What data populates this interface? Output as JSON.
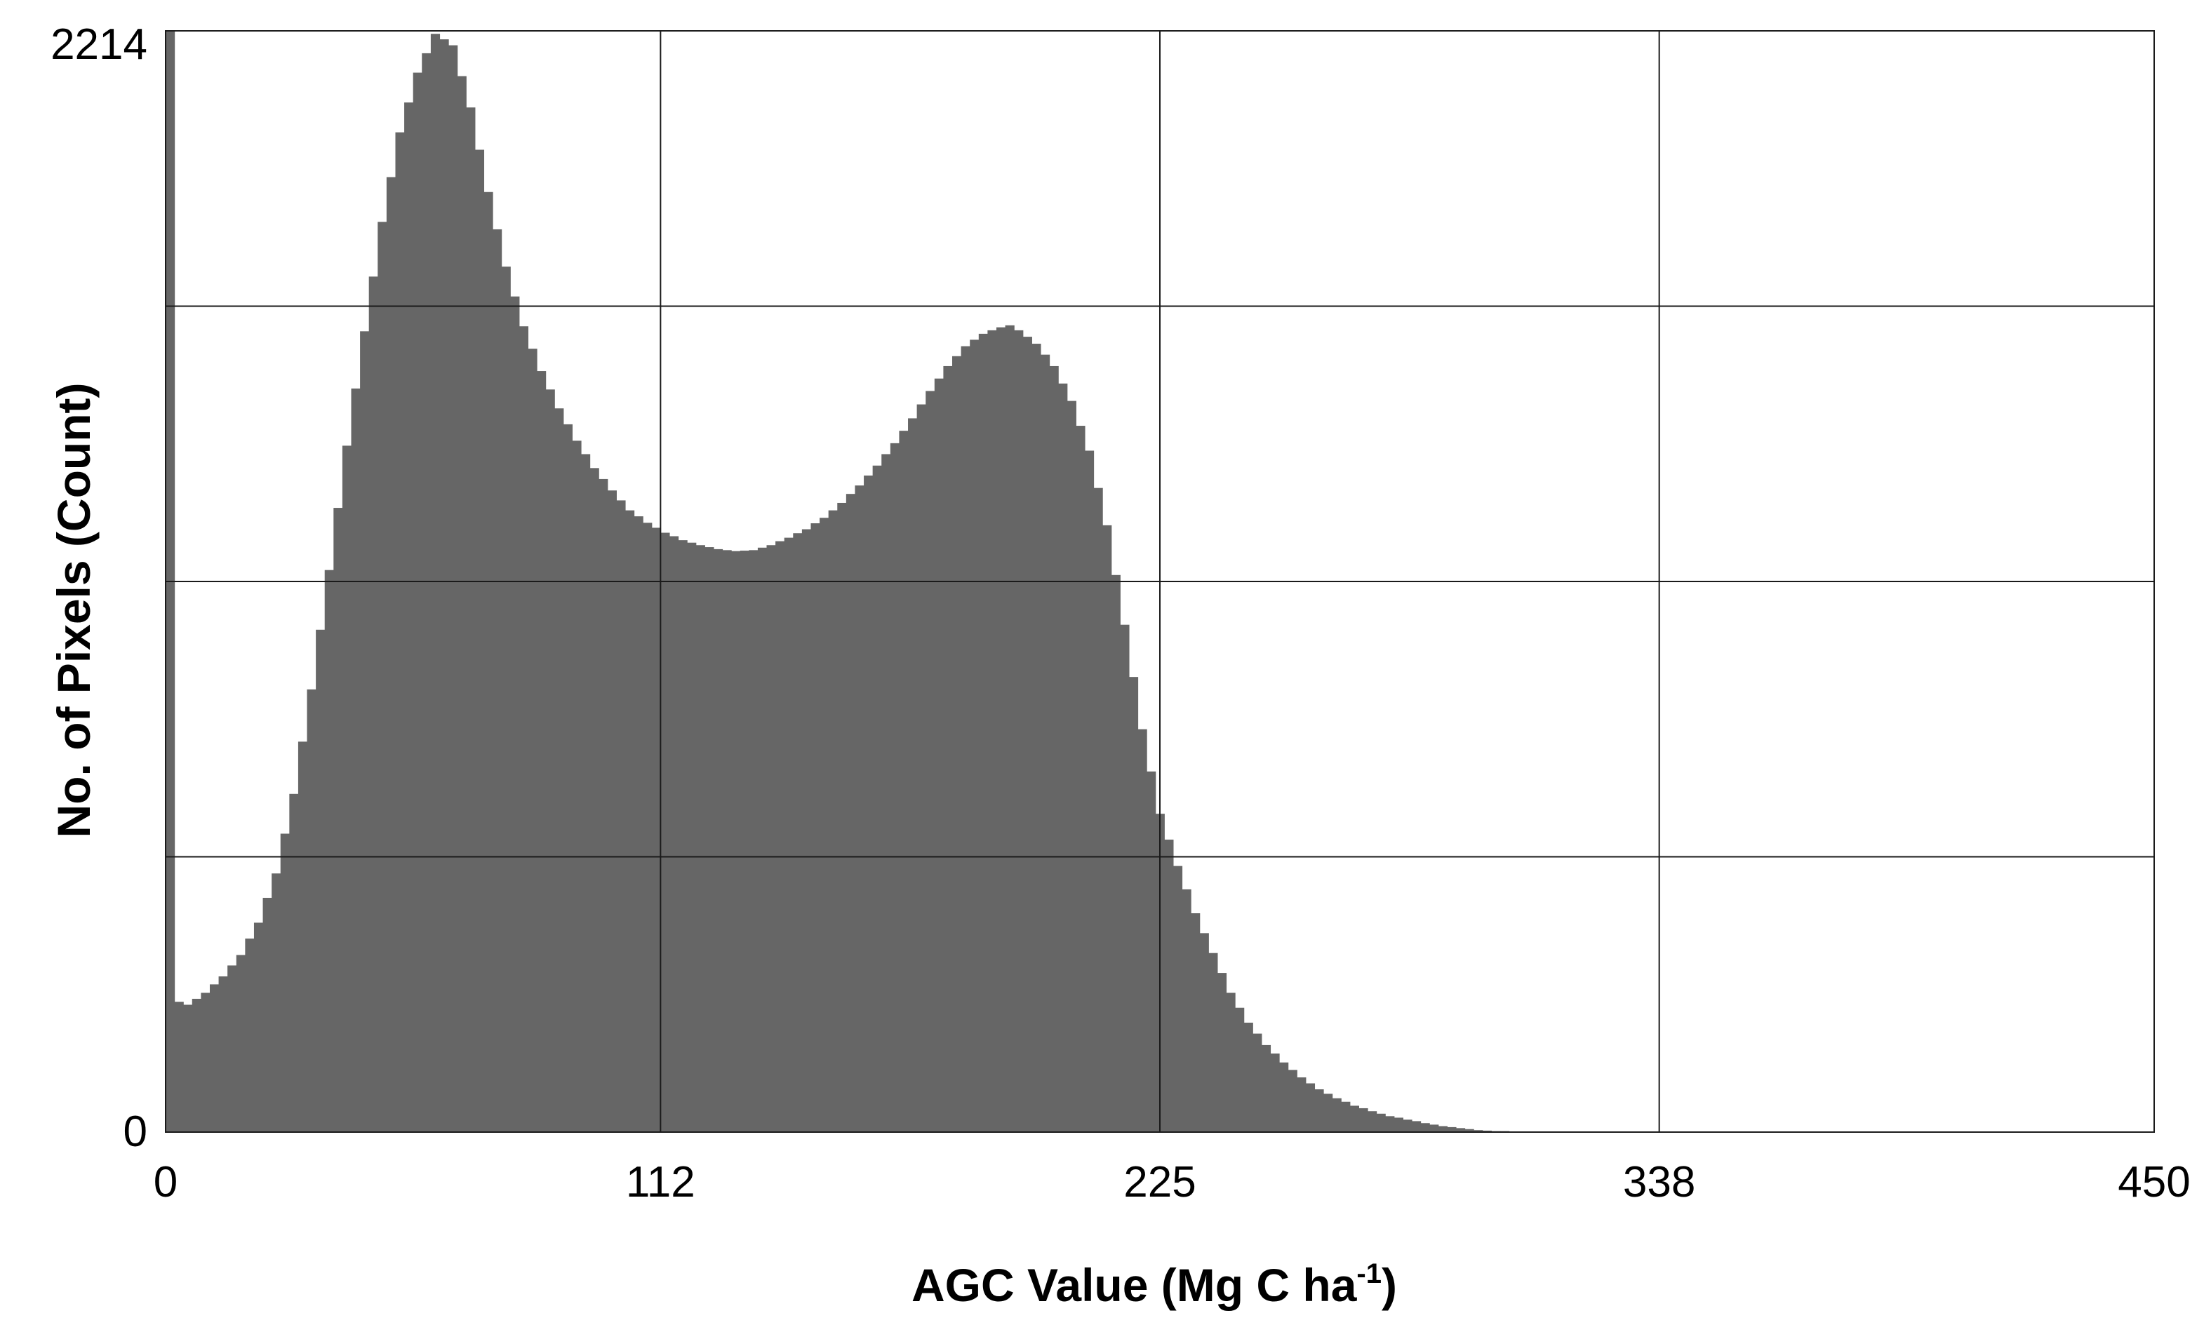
{
  "chart_data": {
    "type": "bar",
    "subtype": "histogram",
    "title": "",
    "xlabel": "AGC Value (Mg C ha",
    "xlabel_superscript": "-1",
    "xlabel_suffix": ")",
    "ylabel": "No. of Pixels (Count)",
    "xlim": [
      0,
      450
    ],
    "ylim": [
      0,
      2214
    ],
    "x_ticks": [
      "0",
      "112",
      "225",
      "338",
      "450"
    ],
    "x_tick_values": [
      0,
      112,
      225,
      338,
      450
    ],
    "y_ticks": [
      "0",
      "2214"
    ],
    "y_tick_values": [
      0,
      2214
    ],
    "grid": true,
    "horizontal_grid_values": [
      553.5,
      1107,
      1660.5
    ],
    "bar_color": "#666666",
    "bin_width": 2,
    "profile": {
      "x": [
        0,
        2,
        4,
        8,
        12,
        16,
        20,
        24,
        28,
        32,
        36,
        40,
        44,
        48,
        52,
        56,
        60,
        64,
        68,
        72,
        76,
        80,
        84,
        88,
        92,
        96,
        100,
        104,
        108,
        112,
        116,
        120,
        124,
        128,
        132,
        136,
        140,
        144,
        148,
        152,
        156,
        160,
        164,
        168,
        172,
        176,
        180,
        184,
        188,
        190,
        192,
        196,
        200,
        204,
        208,
        212,
        216,
        220,
        224,
        228,
        232,
        236,
        240,
        244,
        248,
        252,
        256,
        260,
        264,
        268,
        272,
        276,
        280,
        284,
        288,
        292,
        296,
        300,
        304,
        308,
        312,
        316,
        320,
        324,
        328,
        332,
        336
      ],
      "y": [
        2214,
        262,
        256,
        280,
        313,
        356,
        421,
        520,
        680,
        890,
        1130,
        1380,
        1610,
        1830,
        2010,
        2130,
        2208,
        2185,
        2060,
        1890,
        1740,
        1620,
        1530,
        1455,
        1390,
        1335,
        1290,
        1250,
        1225,
        1205,
        1190,
        1180,
        1172,
        1168,
        1170,
        1180,
        1195,
        1212,
        1235,
        1265,
        1300,
        1340,
        1385,
        1435,
        1490,
        1540,
        1580,
        1605,
        1618,
        1622,
        1612,
        1585,
        1540,
        1470,
        1370,
        1220,
        1020,
        810,
        640,
        535,
        440,
        360,
        280,
        220,
        175,
        140,
        110,
        86,
        68,
        53,
        42,
        32,
        25,
        18,
        12,
        8,
        4,
        2,
        1,
        0,
        0,
        0,
        0,
        0,
        0,
        0,
        0
      ]
    }
  }
}
